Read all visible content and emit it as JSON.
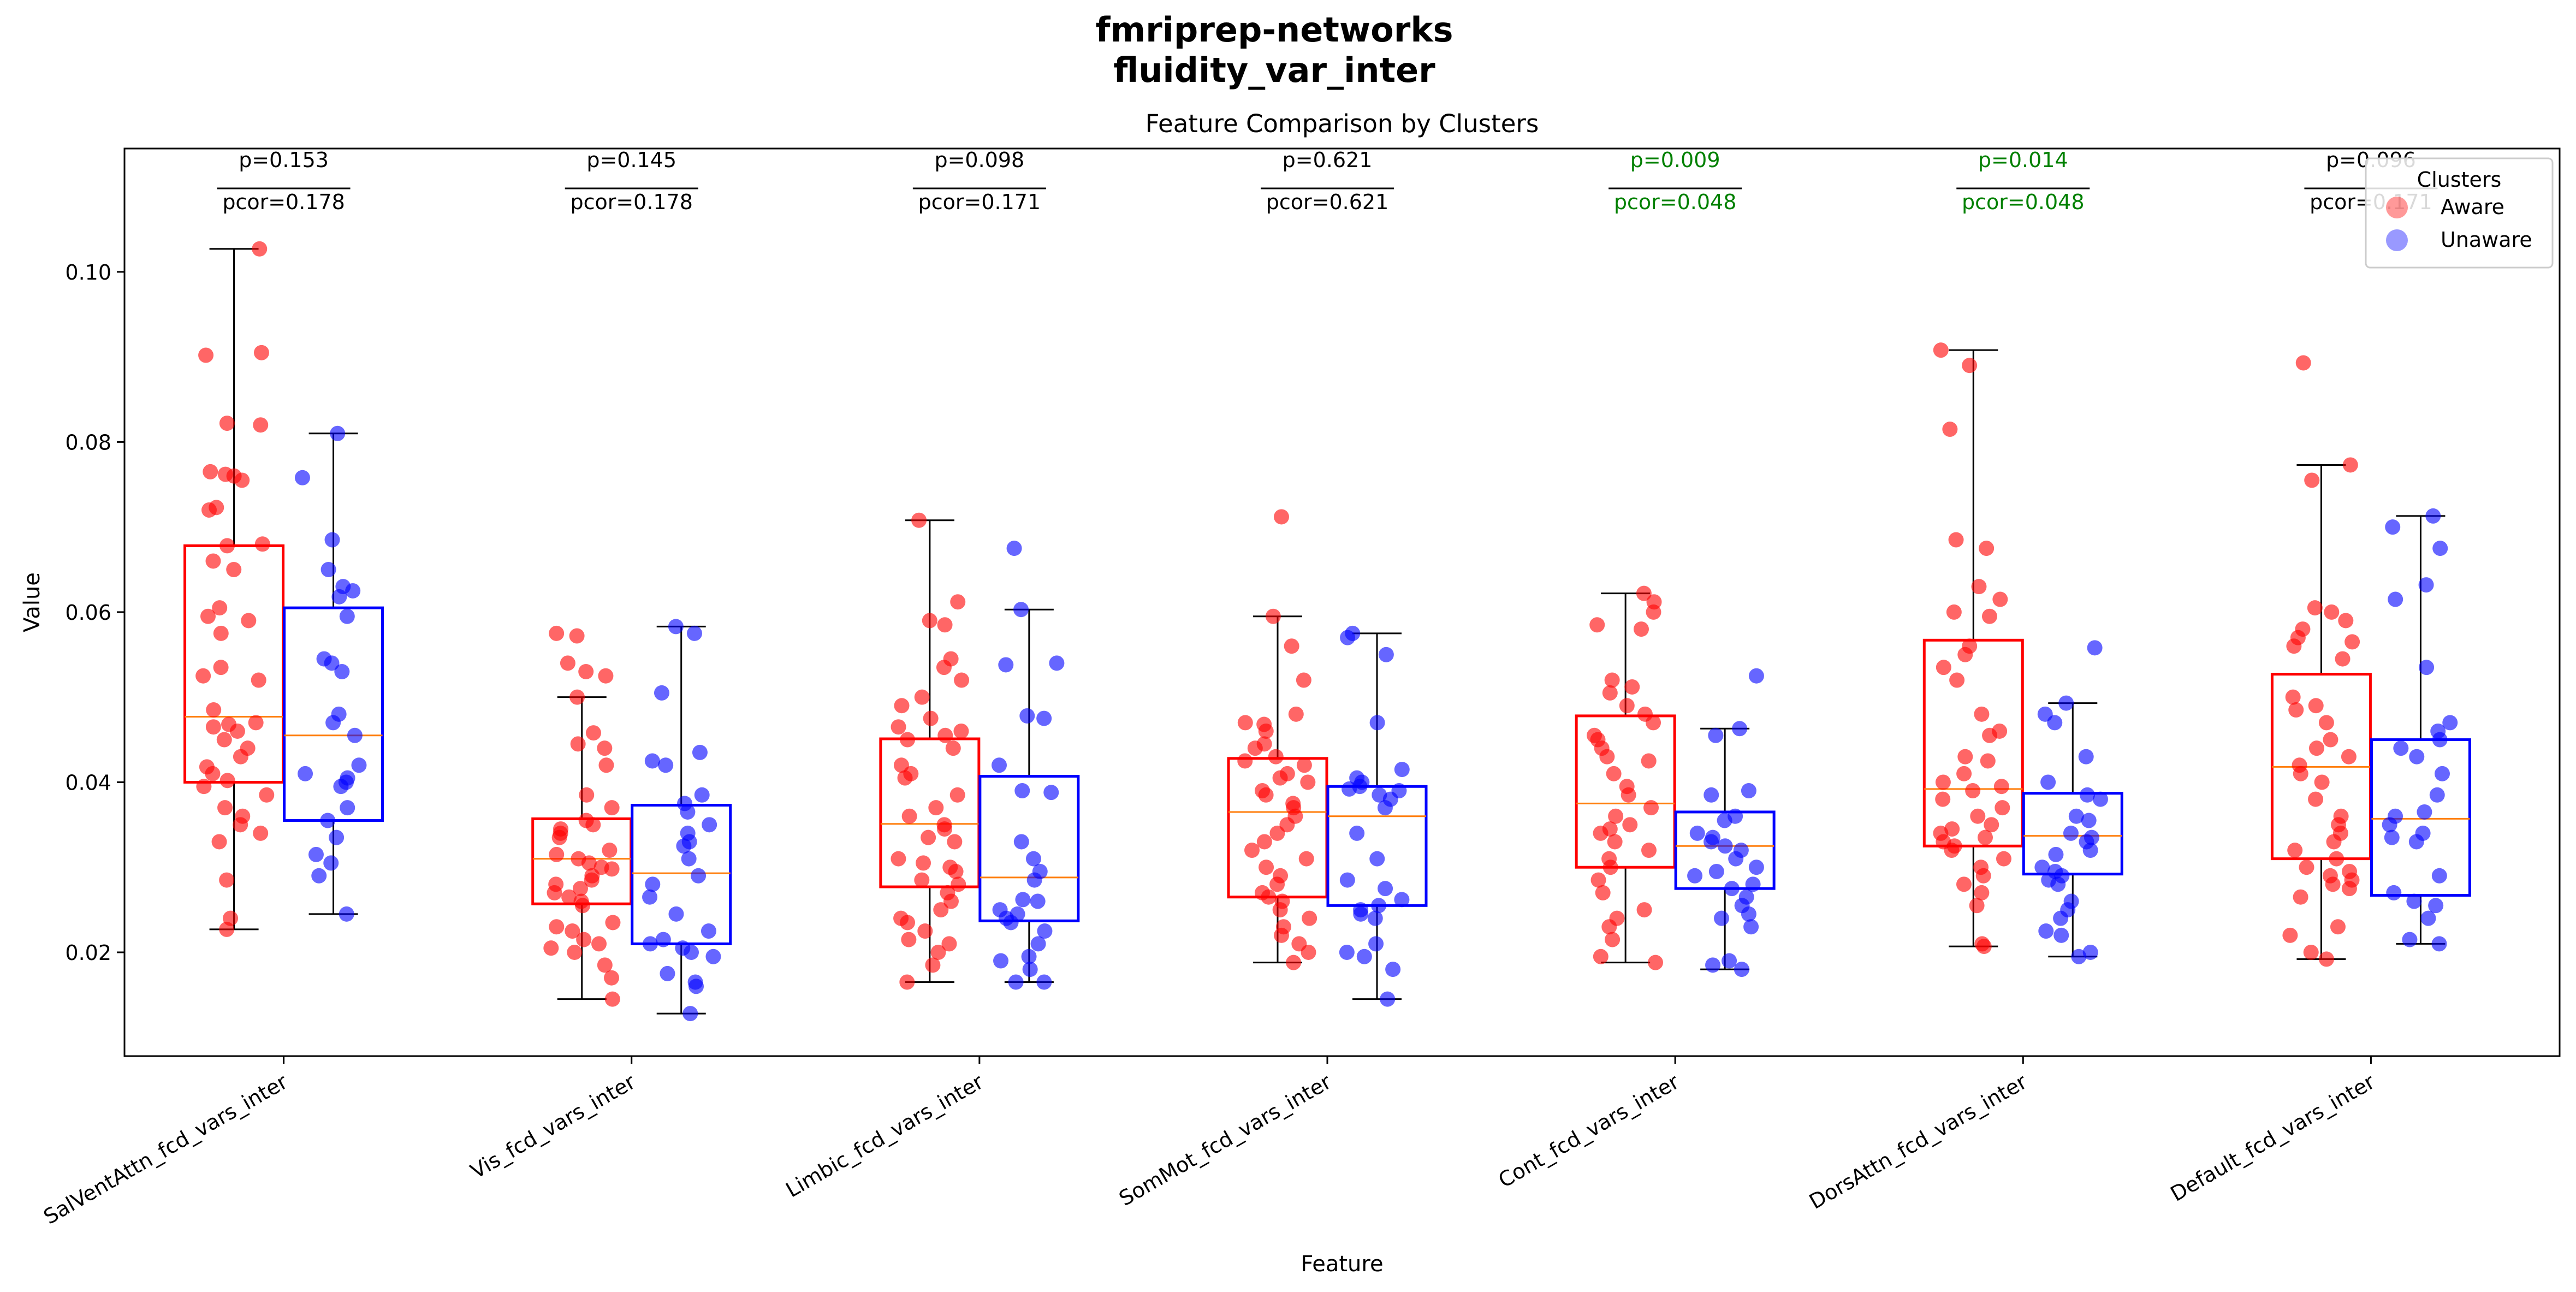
{
  "suptitle": [
    "fmriprep-networks",
    "fluidity_var_inter"
  ],
  "chart_data": {
    "type": "box",
    "title": "Feature Comparison by Clusters",
    "xlabel": "Feature",
    "ylabel": "Value",
    "ylim": [
      0.0078,
      0.1145
    ],
    "yticks": [
      0.02,
      0.04,
      0.06,
      0.08,
      0.1
    ],
    "ytick_labels": [
      "0.02",
      "0.04",
      "0.06",
      "0.08",
      "0.10"
    ],
    "grid": false,
    "legend": {
      "title": "Clusters",
      "position": "top-right",
      "entries": [
        "Aware",
        "Unaware"
      ]
    },
    "colors": {
      "Aware": "#ff0000",
      "Unaware": "#0000ff",
      "median": "#ff7f0e",
      "sig": "#008000",
      "text": "#000000"
    },
    "features": [
      {
        "name": "SalVentAttn_fcd_vars_inter",
        "p": "p=0.153",
        "pcor": "pcor=0.178",
        "significant": false,
        "aware": {
          "whislo": 0.0227,
          "q1": 0.04,
          "med": 0.0477,
          "q3": 0.0678,
          "whishi": 0.1027,
          "points": [
            0.1027,
            0.0905,
            0.0902,
            0.0822,
            0.082,
            0.0765,
            0.0762,
            0.076,
            0.0755,
            0.0723,
            0.072,
            0.068,
            0.0678,
            0.066,
            0.065,
            0.0605,
            0.0595,
            0.059,
            0.0575,
            0.0535,
            0.0525,
            0.052,
            0.0485,
            0.047,
            0.0468,
            0.0465,
            0.046,
            0.045,
            0.044,
            0.043,
            0.0418,
            0.041,
            0.0402,
            0.0395,
            0.0385,
            0.037,
            0.036,
            0.035,
            0.034,
            0.033,
            0.0285,
            0.024,
            0.0227
          ]
        },
        "unaware": {
          "whislo": 0.0245,
          "q1": 0.0355,
          "med": 0.0455,
          "q3": 0.0605,
          "whishi": 0.081,
          "points": [
            0.081,
            0.0758,
            0.0685,
            0.065,
            0.063,
            0.0625,
            0.0618,
            0.0595,
            0.0545,
            0.054,
            0.053,
            0.048,
            0.047,
            0.0455,
            0.042,
            0.041,
            0.0405,
            0.04,
            0.0395,
            0.037,
            0.0355,
            0.0335,
            0.0315,
            0.0305,
            0.029,
            0.0245
          ]
        }
      },
      {
        "name": "Vis_fcd_vars_inter",
        "p": "p=0.145",
        "pcor": "pcor=0.178",
        "significant": false,
        "aware": {
          "whislo": 0.0145,
          "q1": 0.0257,
          "med": 0.031,
          "q3": 0.0357,
          "whishi": 0.05,
          "points": [
            0.0575,
            0.0572,
            0.054,
            0.053,
            0.0525,
            0.05,
            0.0458,
            0.0445,
            0.044,
            0.042,
            0.0385,
            0.037,
            0.0355,
            0.035,
            0.0345,
            0.034,
            0.0335,
            0.032,
            0.0315,
            0.031,
            0.0305,
            0.03,
            0.0298,
            0.029,
            0.0285,
            0.028,
            0.0275,
            0.027,
            0.0265,
            0.026,
            0.0255,
            0.0235,
            0.023,
            0.0225,
            0.0215,
            0.021,
            0.0205,
            0.02,
            0.0185,
            0.017,
            0.0145
          ]
        },
        "unaware": {
          "whislo": 0.0128,
          "q1": 0.021,
          "med": 0.0293,
          "q3": 0.0373,
          "whishi": 0.0583,
          "points": [
            0.0583,
            0.0575,
            0.0505,
            0.0435,
            0.0425,
            0.042,
            0.0385,
            0.0375,
            0.0365,
            0.035,
            0.034,
            0.033,
            0.0325,
            0.031,
            0.029,
            0.028,
            0.0265,
            0.0245,
            0.0225,
            0.0215,
            0.021,
            0.0205,
            0.02,
            0.0195,
            0.0175,
            0.0165,
            0.016,
            0.0128
          ]
        }
      },
      {
        "name": "Limbic_fcd_vars_inter",
        "p": "p=0.098",
        "pcor": "pcor=0.171",
        "significant": false,
        "aware": {
          "whislo": 0.0165,
          "q1": 0.0277,
          "med": 0.0351,
          "q3": 0.0451,
          "whishi": 0.0708,
          "points": [
            0.0708,
            0.0612,
            0.059,
            0.0585,
            0.0545,
            0.0535,
            0.052,
            0.05,
            0.049,
            0.0475,
            0.0465,
            0.046,
            0.0455,
            0.045,
            0.044,
            0.042,
            0.041,
            0.0405,
            0.0385,
            0.037,
            0.036,
            0.035,
            0.0345,
            0.0335,
            0.033,
            0.031,
            0.0305,
            0.03,
            0.0295,
            0.0285,
            0.028,
            0.027,
            0.026,
            0.025,
            0.024,
            0.0235,
            0.0225,
            0.0215,
            0.021,
            0.02,
            0.0185,
            0.0165
          ]
        },
        "unaware": {
          "whislo": 0.0165,
          "q1": 0.0237,
          "med": 0.0288,
          "q3": 0.0407,
          "whishi": 0.0603,
          "points": [
            0.0675,
            0.0603,
            0.054,
            0.0538,
            0.0478,
            0.0475,
            0.042,
            0.039,
            0.0388,
            0.033,
            0.031,
            0.0295,
            0.0285,
            0.0262,
            0.026,
            0.025,
            0.0245,
            0.024,
            0.0235,
            0.0225,
            0.021,
            0.0195,
            0.019,
            0.018,
            0.0165,
            0.0165
          ]
        }
      },
      {
        "name": "SomMot_fcd_vars_inter",
        "p": "p=0.621",
        "pcor": "pcor=0.621",
        "significant": false,
        "aware": {
          "whislo": 0.0188,
          "q1": 0.0265,
          "med": 0.0365,
          "q3": 0.0428,
          "whishi": 0.0595,
          "points": [
            0.0712,
            0.0595,
            0.056,
            0.052,
            0.048,
            0.047,
            0.0468,
            0.046,
            0.0445,
            0.044,
            0.043,
            0.0425,
            0.042,
            0.041,
            0.0405,
            0.04,
            0.039,
            0.0385,
            0.0375,
            0.037,
            0.036,
            0.035,
            0.034,
            0.033,
            0.032,
            0.031,
            0.03,
            0.029,
            0.028,
            0.027,
            0.0265,
            0.026,
            0.025,
            0.024,
            0.023,
            0.022,
            0.021,
            0.02,
            0.0188
          ]
        },
        "unaware": {
          "whislo": 0.0145,
          "q1": 0.0255,
          "med": 0.036,
          "q3": 0.0395,
          "whishi": 0.0575,
          "points": [
            0.0575,
            0.057,
            0.055,
            0.047,
            0.0415,
            0.0405,
            0.04,
            0.0395,
            0.0392,
            0.039,
            0.0385,
            0.038,
            0.037,
            0.034,
            0.031,
            0.0285,
            0.0275,
            0.0262,
            0.0255,
            0.025,
            0.0245,
            0.024,
            0.021,
            0.02,
            0.0195,
            0.018,
            0.0145
          ]
        }
      },
      {
        "name": "Cont_fcd_vars_inter",
        "p": "p=0.009",
        "pcor": "pcor=0.048",
        "significant": true,
        "aware": {
          "whislo": 0.0188,
          "q1": 0.03,
          "med": 0.0375,
          "q3": 0.0478,
          "whishi": 0.0622,
          "points": [
            0.0622,
            0.0612,
            0.06,
            0.0585,
            0.058,
            0.052,
            0.0512,
            0.0505,
            0.049,
            0.048,
            0.047,
            0.0455,
            0.045,
            0.044,
            0.043,
            0.0425,
            0.041,
            0.0395,
            0.0385,
            0.037,
            0.036,
            0.035,
            0.0345,
            0.034,
            0.033,
            0.032,
            0.031,
            0.03,
            0.0285,
            0.027,
            0.025,
            0.024,
            0.023,
            0.0215,
            0.0195,
            0.0188
          ]
        },
        "unaware": {
          "whislo": 0.018,
          "q1": 0.0275,
          "med": 0.0325,
          "q3": 0.0365,
          "whishi": 0.0463,
          "points": [
            0.0525,
            0.0463,
            0.0455,
            0.039,
            0.0385,
            0.036,
            0.0355,
            0.034,
            0.0335,
            0.033,
            0.0325,
            0.032,
            0.031,
            0.03,
            0.0295,
            0.029,
            0.028,
            0.0275,
            0.0265,
            0.0255,
            0.0245,
            0.024,
            0.023,
            0.019,
            0.0185,
            0.018
          ]
        }
      },
      {
        "name": "DorsAttn_fcd_vars_inter",
        "p": "p=0.014",
        "pcor": "pcor=0.048",
        "significant": true,
        "aware": {
          "whislo": 0.0207,
          "q1": 0.0325,
          "med": 0.0392,
          "q3": 0.0567,
          "whishi": 0.0908,
          "points": [
            0.0908,
            0.089,
            0.0815,
            0.0685,
            0.0675,
            0.063,
            0.0615,
            0.06,
            0.0595,
            0.056,
            0.055,
            0.0535,
            0.052,
            0.048,
            0.046,
            0.0455,
            0.043,
            0.0425,
            0.041,
            0.04,
            0.0395,
            0.039,
            0.038,
            0.037,
            0.036,
            0.035,
            0.0345,
            0.034,
            0.0335,
            0.033,
            0.0325,
            0.032,
            0.031,
            0.03,
            0.029,
            0.028,
            0.027,
            0.0255,
            0.021,
            0.0207
          ]
        },
        "unaware": {
          "whislo": 0.0195,
          "q1": 0.0292,
          "med": 0.0337,
          "q3": 0.0387,
          "whishi": 0.0493,
          "points": [
            0.0558,
            0.0493,
            0.048,
            0.047,
            0.043,
            0.04,
            0.0385,
            0.038,
            0.036,
            0.0355,
            0.034,
            0.0335,
            0.033,
            0.032,
            0.0315,
            0.03,
            0.0295,
            0.029,
            0.0285,
            0.028,
            0.026,
            0.025,
            0.024,
            0.0225,
            0.022,
            0.02,
            0.0195
          ]
        }
      },
      {
        "name": "Default_fcd_vars_inter",
        "p": "p=0.096",
        "pcor": "pcor=0.171",
        "significant": false,
        "aware": {
          "whislo": 0.0192,
          "q1": 0.031,
          "med": 0.0418,
          "q3": 0.0527,
          "whishi": 0.0773,
          "points": [
            0.0893,
            0.0773,
            0.0755,
            0.0605,
            0.06,
            0.059,
            0.058,
            0.057,
            0.0565,
            0.056,
            0.0545,
            0.05,
            0.049,
            0.0485,
            0.047,
            0.045,
            0.044,
            0.043,
            0.042,
            0.041,
            0.04,
            0.038,
            0.036,
            0.035,
            0.034,
            0.033,
            0.032,
            0.031,
            0.03,
            0.0295,
            0.029,
            0.0285,
            0.028,
            0.0275,
            0.0265,
            0.023,
            0.022,
            0.02,
            0.0192
          ]
        },
        "unaware": {
          "whislo": 0.021,
          "q1": 0.0267,
          "med": 0.0357,
          "q3": 0.045,
          "whishi": 0.0713,
          "points": [
            0.0713,
            0.07,
            0.0675,
            0.0632,
            0.0615,
            0.0535,
            0.047,
            0.046,
            0.045,
            0.044,
            0.043,
            0.041,
            0.0385,
            0.0365,
            0.036,
            0.035,
            0.034,
            0.0335,
            0.033,
            0.029,
            0.027,
            0.026,
            0.0255,
            0.024,
            0.0215,
            0.021
          ]
        }
      }
    ]
  }
}
